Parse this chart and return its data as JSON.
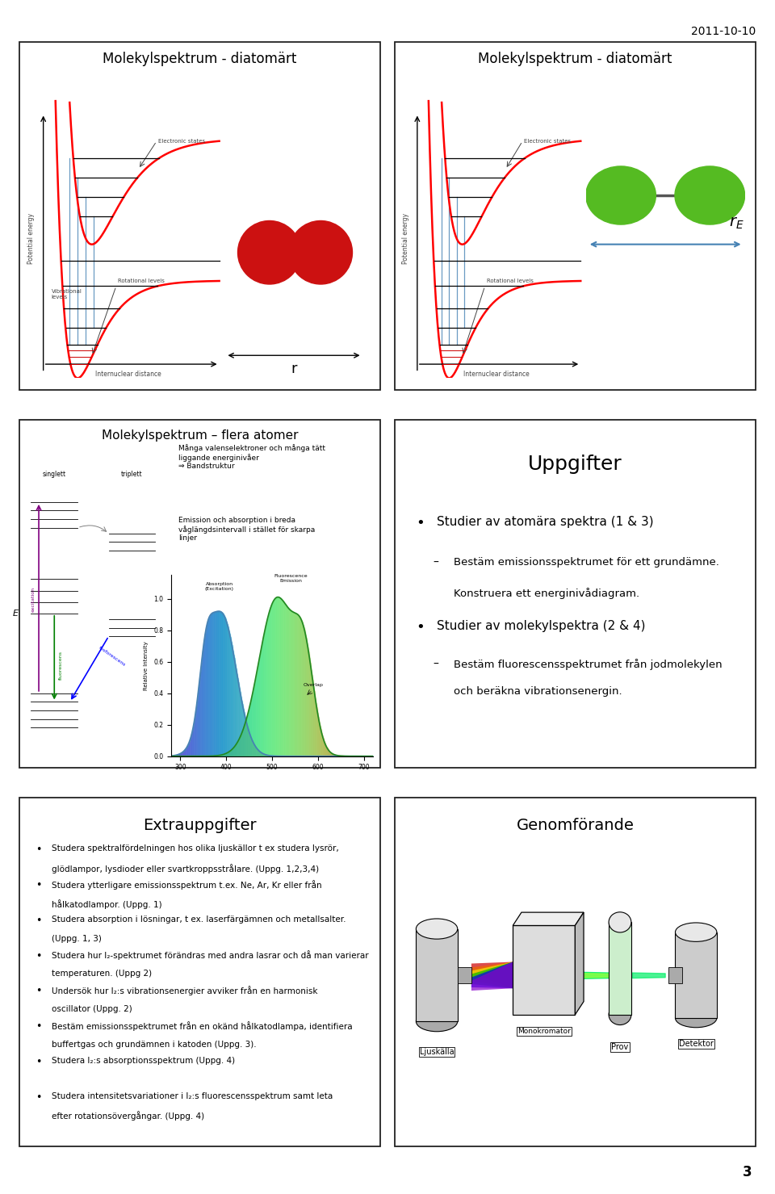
{
  "date_text": "2011-10-10",
  "page_number": "3",
  "panel1_title": "Molekylspektrum - diatomärt",
  "panel2_title": "Molekylspektrum - diatomärt",
  "panel3_title": "Molekylspektrum – flera atomer",
  "panel4_title": "Uppgifter",
  "panel5_title": "Extrauppgifter",
  "panel6_title": "Genomförande",
  "panel4_bullet1": "Studier av atomära spektra (1 & 3)",
  "panel4_sub1a": "Bestäm emissionsspektrumet för ett grundämne.",
  "panel4_sub1b": "Konstruera ett energinivådiagram.",
  "panel4_bullet2": "Studier av molekylspektra (2 & 4)",
  "panel4_sub2a": "Bestäm fluorescensspektrumet från jodmolekylen",
  "panel4_sub2b": "och beräkna vibrationsenergin.",
  "panel5_bullets": [
    "Studera spektralfördelningen hos olika ljuskällor t ex studera lysrör, glödlampor, lysdioder eller svartkroppsstrålare. (Uppg. 1,2,3,4)",
    "Studera ytterligare emissionsspektrum t.ex. Ne, Ar, Kr eller från hålkatodlampor. (Uppg. 1)",
    "Studera absorption i lösningar, t ex. laserfärgämnen och metallsalter. (Uppg. 1, 3)",
    "Studera hur I₂-spektrumet förändras med andra lasrar och då man varierar temperaturen.  (Uppg 2)",
    "Undersök hur I₂:s vibrationsenergier avviker från  en harmonisk oscillator (Uppg. 2)",
    "Bestäm emissionsspektrumet från en okänd hålkatodlampa, identifiera buffertgas och grundämnen i katoden (Uppg. 3).",
    "Studera I₂:s absorptionsspektrum (Uppg. 4)",
    "Studera intensitetsvariationer i I₂:s fluorescensspektrum samt leta efter rotationsövergångar. (Uppg. 4)"
  ],
  "background_color": "#ffffff",
  "panel_border_color": "#000000",
  "text_color": "#000000"
}
